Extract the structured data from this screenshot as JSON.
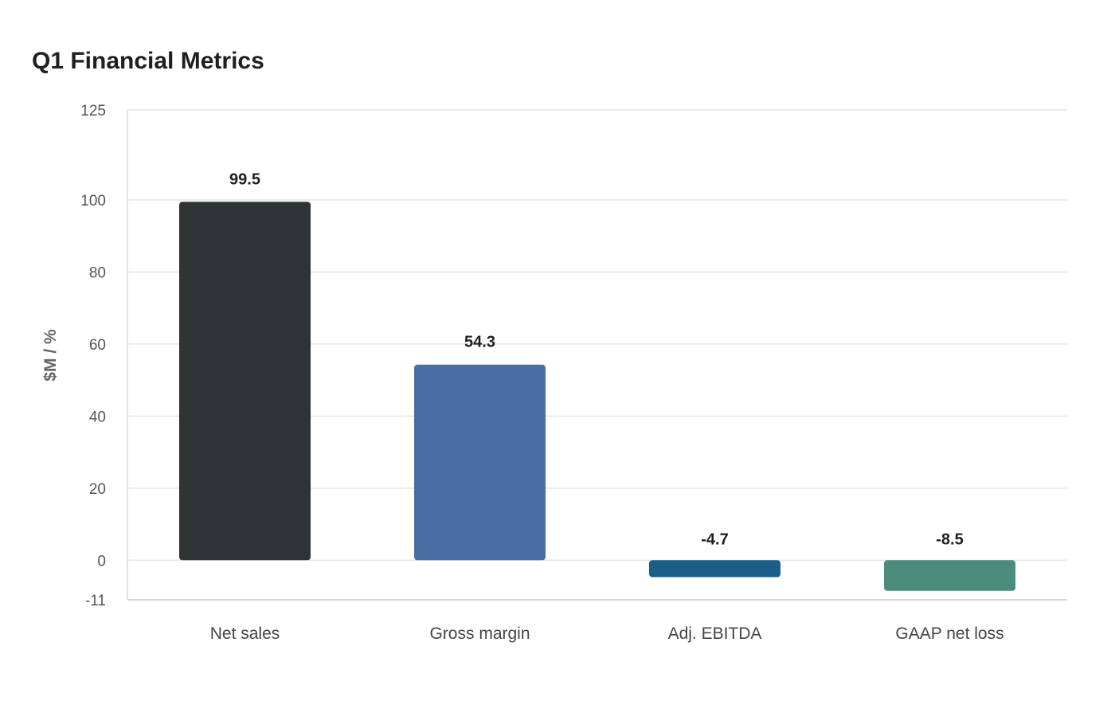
{
  "chart_data": {
    "type": "bar",
    "title": "Q1 Financial Metrics",
    "xlabel": "",
    "ylabel": "$M / %",
    "categories": [
      "Net sales",
      "Gross margin",
      "Adj. EBITDA",
      "GAAP net loss"
    ],
    "values": [
      99.5,
      54.3,
      -4.7,
      -8.5
    ],
    "data_labels": [
      "99.5",
      "54.3",
      "-4.7",
      "-8.5"
    ],
    "colors": [
      "#2e3436",
      "#4a6fa5",
      "#1b5e87",
      "#4c8c7a"
    ],
    "ylim": [
      -11,
      125
    ],
    "yticks": [
      -11,
      0,
      20,
      40,
      60,
      80,
      100,
      125
    ],
    "grid": true,
    "legend": "none"
  }
}
